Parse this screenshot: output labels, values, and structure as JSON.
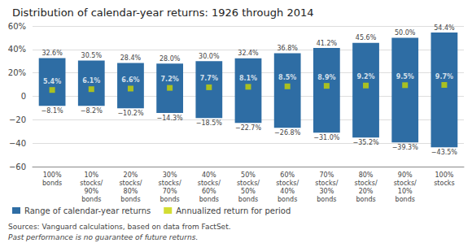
{
  "chart_data": {
    "type": "bar",
    "title": "Distribution of calendar-year returns: 1926 through 2014",
    "categories": [
      "100%\nbonds",
      "10%\nstocks/\n90%\nbonds",
      "20%\nstocks/\n80%\nbonds",
      "30%\nstocks/\n70%\nbonds",
      "40%\nstocks/\n60%\nbonds",
      "50%\nstocks/\n50%\nbonds",
      "60%\nstocks/\n40%\nbonds",
      "70%\nstocks/\n30%\nbonds",
      "80%\nstocks/\n20%\nbonds",
      "90%\nstocks/\n10%\nbonds",
      "100%\nstocks"
    ],
    "series": [
      {
        "name": "Range of calendar-year returns",
        "type": "bar",
        "color": "#2e6da4",
        "low": [
          -8.1,
          -8.2,
          -10.2,
          -14.3,
          -18.5,
          -22.7,
          -26.8,
          -31.0,
          -35.2,
          -39.3,
          -43.5
        ],
        "high": [
          32.6,
          30.5,
          28.4,
          28.0,
          30.0,
          32.4,
          36.8,
          41.2,
          45.6,
          50.0,
          54.4
        ],
        "low_labels": [
          "−8.1%",
          "−8.2%",
          "−10.2%",
          "−14.3%",
          "−18.5%",
          "−22.7%",
          "−26.8%",
          "−31.0%",
          "−35.2%",
          "−39.3%",
          "−43.5%"
        ],
        "high_labels": [
          "32.6%",
          "30.5%",
          "28.4%",
          "28.0%",
          "30.0%",
          "32.4%",
          "36.8%",
          "41.2%",
          "45.6%",
          "50.0%",
          "54.4%"
        ]
      },
      {
        "name": "Annualized return for period",
        "type": "scatter",
        "marker": "square",
        "color": "#c8d400",
        "values": [
          5.4,
          6.1,
          6.6,
          7.2,
          7.7,
          8.1,
          8.5,
          8.9,
          9.2,
          9.5,
          9.7
        ],
        "value_labels": [
          "5.4%",
          "6.1%",
          "6.6%",
          "7.2%",
          "7.7%",
          "8.1%",
          "8.5%",
          "8.9%",
          "9.2%",
          "9.5%",
          "9.7%"
        ]
      }
    ],
    "ylim": [
      -60,
      60
    ],
    "yticks": [
      {
        "value": -60,
        "label": "−60"
      },
      {
        "value": -40,
        "label": "−40"
      },
      {
        "value": -20,
        "label": "−20"
      },
      0,
      {
        "value": 20,
        "label": "20%"
      },
      {
        "value": 40,
        "label": "40%"
      },
      {
        "value": 60,
        "label": "60%"
      }
    ],
    "grid": true,
    "data_labels": true,
    "legend": "lower left",
    "annotations": [
      "Sources: Vanguard calculations, based on data from FactSet.",
      "Past performance is no guarantee of future returns."
    ]
  }
}
